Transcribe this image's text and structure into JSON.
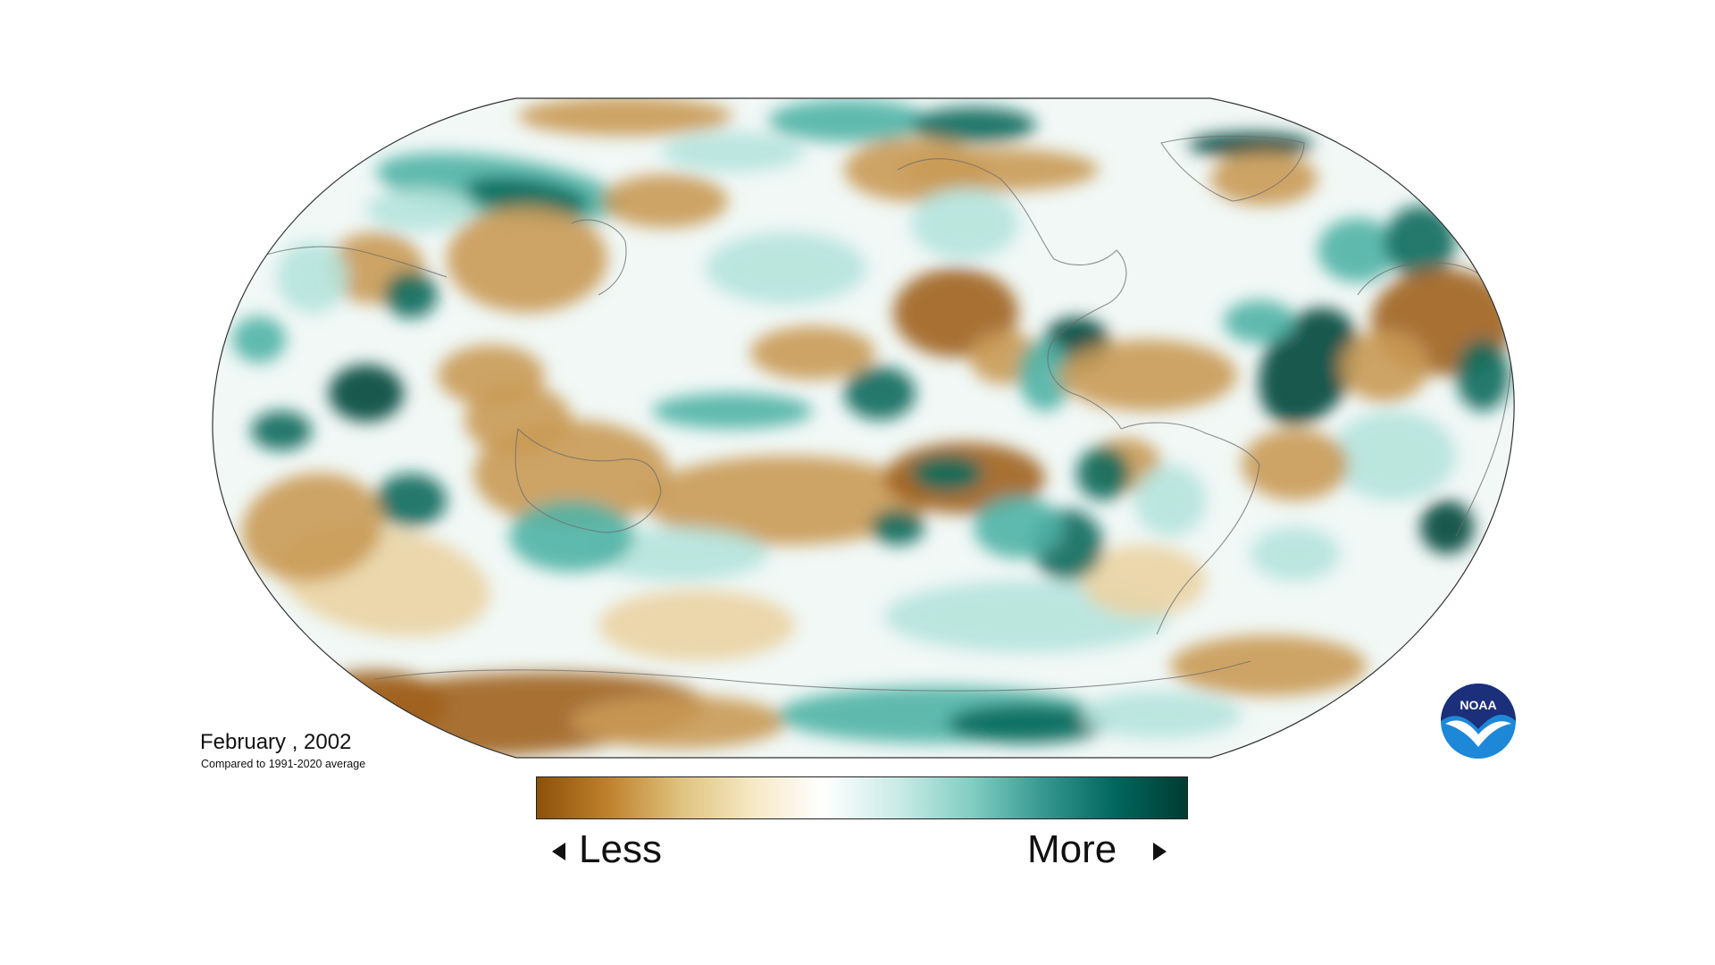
{
  "map": {
    "caption": {
      "date": "February , 2002",
      "subtitle": "Compared to 1991-2020 average"
    },
    "legend": {
      "less_label": "Less",
      "more_label": "More",
      "colors": [
        "#8c510a",
        "#bf812d",
        "#dfc27d",
        "#f6e8c3",
        "#ffffff",
        "#c7eae5",
        "#80cdc1",
        "#35978f",
        "#01665e",
        "#003c30"
      ]
    },
    "logo": {
      "text": "NOAA",
      "colors": {
        "dark": "#1c2f7a",
        "light": "#1e88d8"
      }
    },
    "anomaly_colors": {
      "dry_strong": "#a0621c",
      "dry": "#c99a55",
      "dry_light": "#ead3a3",
      "neutral": "#f4fbfa",
      "wet_light": "#b5e3dc",
      "wet": "#4fb3a5",
      "wet_strong": "#0a6a5c",
      "wet_very_strong": "#00463a"
    }
  }
}
